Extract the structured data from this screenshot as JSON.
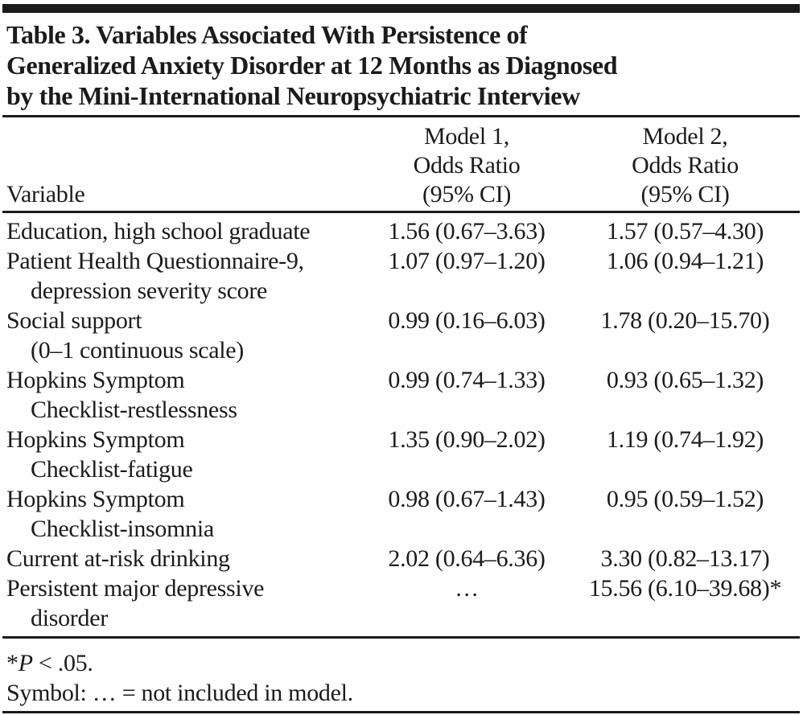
{
  "page": {
    "background_color": "#ffffff",
    "text_color": "#1b1b1b",
    "rule_color": "#1b1b1b"
  },
  "table": {
    "title_lines": [
      "Table 3. Variables Associated With Persistence of",
      "Generalized Anxiety Disorder at 12 Months as Diagnosed",
      "by the Mini-International Neuropsychiatric Interview"
    ],
    "header": {
      "variable_label": "Variable",
      "model1_lines": [
        "Model 1,",
        "Odds Ratio",
        "(95% CI)"
      ],
      "model2_lines": [
        "Model 2,",
        "Odds Ratio",
        "(95% CI)"
      ]
    },
    "rows": [
      {
        "variable": "Education, high school graduate",
        "variable_cont": "",
        "model1": "1.56 (0.67–3.63)",
        "model2": "1.57 (0.57–4.30)"
      },
      {
        "variable": "Patient Health Questionnaire-9,",
        "variable_cont": "depression severity score",
        "model1": "1.07 (0.97–1.20)",
        "model2": "1.06 (0.94–1.21)"
      },
      {
        "variable": "Social support",
        "variable_cont": "(0–1 continuous scale)",
        "model1": "0.99 (0.16–6.03)",
        "model2": "1.78 (0.20–15.70)"
      },
      {
        "variable": "Hopkins Symptom",
        "variable_cont": "Checklist-restlessness",
        "model1": "0.99 (0.74–1.33)",
        "model2": "0.93 (0.65–1.32)"
      },
      {
        "variable": "Hopkins Symptom",
        "variable_cont": "Checklist-fatigue",
        "model1": "1.35 (0.90–2.02)",
        "model2": "1.19 (0.74–1.92)"
      },
      {
        "variable": "Hopkins Symptom",
        "variable_cont": "Checklist-insomnia",
        "model1": "0.98 (0.67–1.43)",
        "model2": "0.95 (0.59–1.52)"
      },
      {
        "variable": "Current at-risk drinking",
        "variable_cont": "",
        "model1": "2.02 (0.64–6.36)",
        "model2": "3.30 (0.82–13.17)"
      },
      {
        "variable": "Persistent major depressive",
        "variable_cont": "disorder",
        "model1": "…",
        "model2": "15.56 (6.10–39.68)*"
      }
    ],
    "footnotes": {
      "significance_marker": "*",
      "significance_term": "P",
      "significance_rest": " < .05.",
      "symbol_note": "Symbol: … = not included in model."
    }
  }
}
